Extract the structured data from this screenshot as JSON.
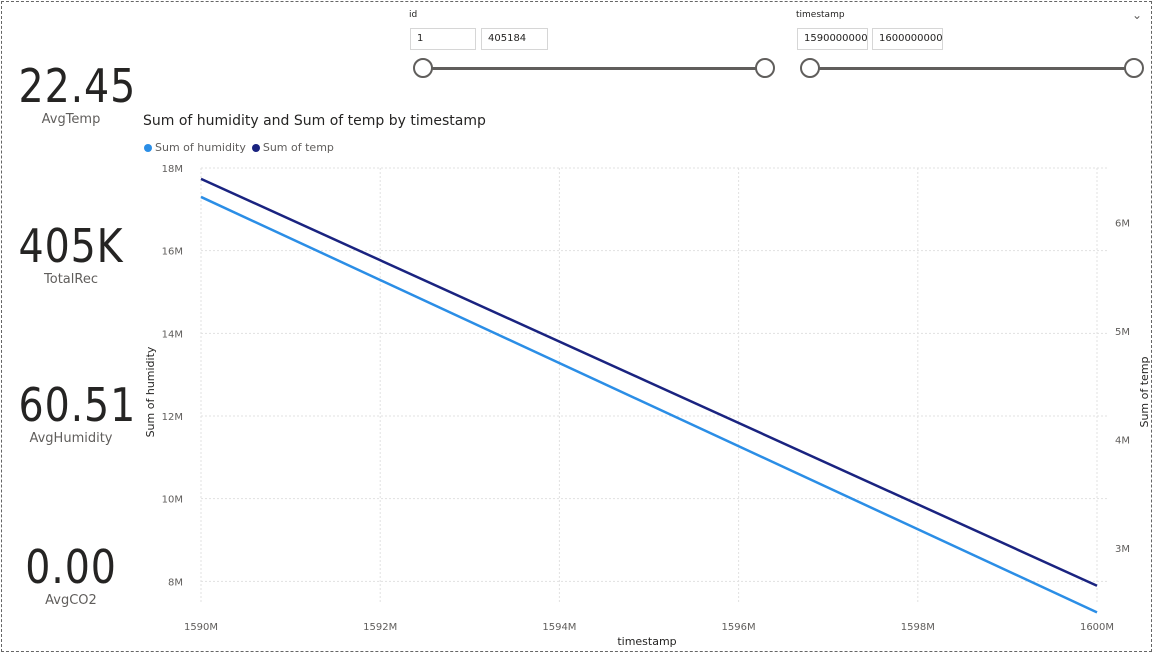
{
  "cards": [
    {
      "value": "22.45",
      "label": "AvgTemp"
    },
    {
      "value": "405K",
      "label": "TotalRec"
    },
    {
      "value": "60.51",
      "label": "AvgHumidity"
    },
    {
      "value": "0.00",
      "label": "AvgCO2"
    }
  ],
  "slicers": {
    "id": {
      "title": "id",
      "min": "1",
      "max": "405184"
    },
    "timestamp": {
      "title": "timestamp",
      "min": "1590000000",
      "max": "1600000000"
    }
  },
  "colors": {
    "humidity": "#2b8ee6",
    "temp": "#1a2380"
  },
  "chart_data": {
    "type": "line",
    "title": "Sum of humidity and Sum of temp by timestamp",
    "xlabel": "timestamp",
    "ylabel": "Sum of humidity",
    "y2label": "Sum of temp",
    "x": [
      1590000000,
      1600000000
    ],
    "x_ticks": [
      "1590M",
      "1592M",
      "1594M",
      "1596M",
      "1598M",
      "1600M"
    ],
    "y_ticks": [
      "18M",
      "16M",
      "14M",
      "12M",
      "10M",
      "8M"
    ],
    "y2_ticks": [
      "6M",
      "5M",
      "4M",
      "3M"
    ],
    "ylim": [
      7500000,
      18000000
    ],
    "y2lim": [
      2500000,
      6500000
    ],
    "series": [
      {
        "name": "Sum of humidity",
        "axis": "left",
        "values": [
          17300000,
          7250000
        ]
      },
      {
        "name": "Sum of temp",
        "axis": "right",
        "values": [
          6400000,
          2650000
        ]
      }
    ],
    "legend_position": "top-left",
    "grid": true
  }
}
